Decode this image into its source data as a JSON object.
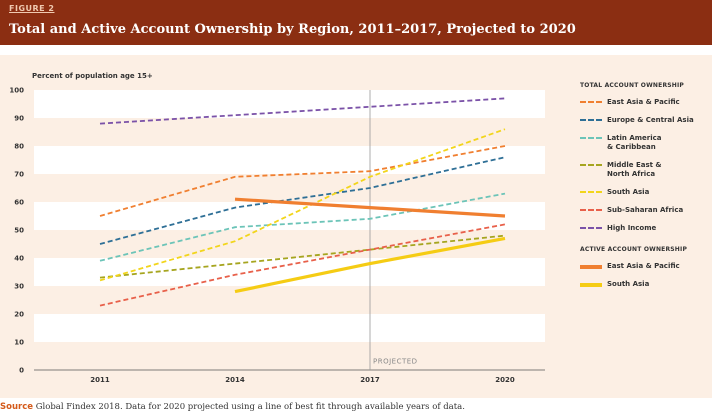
{
  "figure_label": "FIGURE 2",
  "title": "Total and Active Account Ownership by Region, 2011–2017, Projected to 2020",
  "source_label": "Source",
  "source_text": "Global Findex 2018. Data for 2020 projected using a line of best fit through available years of data.",
  "colors": {
    "header_bg": "#8b2e12",
    "panel_bg": "#fcefe4",
    "band": "#ffffff"
  },
  "chart_data": {
    "type": "line",
    "ylabel": "Percent of population age 15+",
    "ylim": [
      0,
      100
    ],
    "yticks": [
      0,
      10,
      20,
      30,
      40,
      50,
      60,
      70,
      80,
      90,
      100
    ],
    "x": [
      2011,
      2014,
      2017,
      2020
    ],
    "xticks": [
      "2011",
      "2014",
      "2017",
      "2020"
    ],
    "projected_label": "PROJECTED",
    "projected_at": 2017,
    "legend_sections": [
      {
        "title": "TOTAL ACCOUNT OWNERSHIP",
        "series_indices": [
          0,
          1,
          2,
          3,
          4,
          5,
          6
        ]
      },
      {
        "title": "ACTIVE ACCOUNT OWNERSHIP",
        "series_indices": [
          7,
          8
        ]
      }
    ],
    "series": [
      {
        "name": "East Asia & Pacific",
        "group": "total",
        "dashed": true,
        "color": "#f07f30",
        "values": [
          55,
          69,
          71,
          80
        ]
      },
      {
        "name": "Europe & Central Asia",
        "group": "total",
        "dashed": true,
        "color": "#2e6f96",
        "values": [
          45,
          58,
          65,
          76
        ]
      },
      {
        "name": "Latin America\n& Caribbean",
        "group": "total",
        "dashed": true,
        "color": "#6cc4b8",
        "values": [
          39,
          51,
          54,
          63
        ]
      },
      {
        "name": "Middle East &\nNorth Africa",
        "group": "total",
        "dashed": true,
        "color": "#a6a51f",
        "values": [
          33,
          38,
          43,
          48
        ]
      },
      {
        "name": "South Asia",
        "group": "total",
        "dashed": true,
        "color": "#f2d51b",
        "values": [
          32,
          46,
          69,
          86
        ]
      },
      {
        "name": "Sub-Saharan Africa",
        "group": "total",
        "dashed": true,
        "color": "#e8604a",
        "values": [
          23,
          34,
          43,
          52
        ]
      },
      {
        "name": "High Income",
        "group": "total",
        "dashed": true,
        "color": "#7b52a8",
        "values": [
          88,
          91,
          94,
          97
        ]
      },
      {
        "name": "East Asia & Pacific",
        "group": "active",
        "dashed": false,
        "color": "#f07f30",
        "values": [
          null,
          61,
          58,
          55
        ]
      },
      {
        "name": "South Asia",
        "group": "active",
        "dashed": false,
        "color": "#f5cc14",
        "values": [
          null,
          28,
          38,
          47
        ]
      }
    ]
  }
}
